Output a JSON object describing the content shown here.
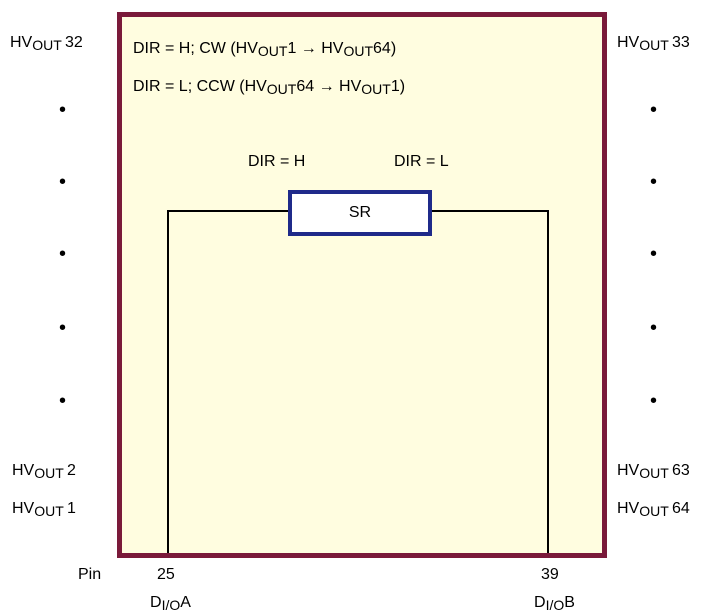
{
  "mode_lines": {
    "cw": {
      "prefix": "DIR = H;  CW (HV",
      "sub1": "OUT",
      "mid1": "1 → HV",
      "sub2": "OUT",
      "end": "64)"
    },
    "ccw": {
      "prefix": "DIR = L; CCW (HV",
      "sub1": "OUT",
      "mid1": "64 → HV",
      "sub2": "OUT",
      "end": "1)"
    }
  },
  "shift_register": {
    "label": "SR",
    "dir_left": "DIR = H",
    "dir_right": "DIR = L"
  },
  "left_outputs": {
    "top": {
      "base": "HV",
      "sub": "OUT",
      "num": "32"
    },
    "second_last": {
      "base": "HV",
      "sub": "OUT",
      "num": "2"
    },
    "last": {
      "base": "HV",
      "sub": "OUT",
      "num": "1"
    },
    "dot": "•"
  },
  "right_outputs": {
    "top": {
      "base": "HV",
      "sub": "OUT",
      "num": "33"
    },
    "second_last": {
      "base": "HV",
      "sub": "OUT",
      "num": "63"
    },
    "last": {
      "base": "HV",
      "sub": "OUT",
      "num": "64"
    },
    "dot": "•"
  },
  "pins": {
    "pin_label": "Pin",
    "left": {
      "number": "25",
      "base": "D",
      "sub": "I/O",
      "suffix": "A"
    },
    "right": {
      "number": "39",
      "base": "D",
      "sub": "I/O",
      "suffix": "B"
    }
  },
  "colors": {
    "chip_border": "#7a1a3a",
    "chip_fill": "#fffde0",
    "sr_border": "#1f2a8a"
  }
}
